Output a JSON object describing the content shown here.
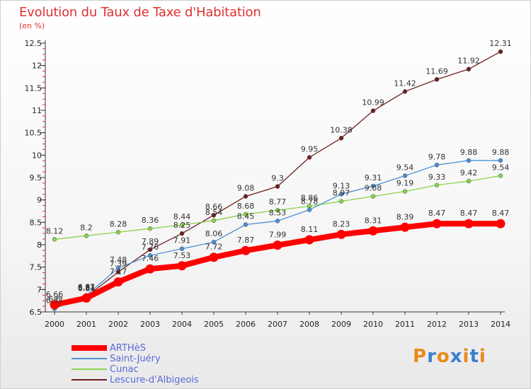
{
  "title": "Evolution du Taux de Taxe d'Habitation",
  "subtitle": "(en %)",
  "logo": {
    "text": "Proxiti",
    "icon": "proxiti-logo"
  },
  "chart_data": {
    "type": "line",
    "x": [
      "2000",
      "2001",
      "2002",
      "2003",
      "2004",
      "2005",
      "2006",
      "2007",
      "2008",
      "2009",
      "2010",
      "2011",
      "2012",
      "2013",
      "2014"
    ],
    "ylim": [
      6.5,
      12.5
    ],
    "yticks": [
      6.5,
      7,
      7.5,
      8,
      8.5,
      9,
      9.5,
      10,
      10.5,
      11,
      11.5,
      12,
      12.5
    ],
    "ytick_labels": [
      "6.5",
      "7",
      "7.5",
      "8",
      "8.5",
      "9",
      "9.5",
      "10",
      "10.5",
      "11",
      "11.5",
      "12",
      "12.5"
    ],
    "grid": false,
    "legend": "bottom-left",
    "series": [
      {
        "name": "ARTHèS",
        "color": "#ff0000",
        "values": [
          6.66,
          6.81,
          7.17,
          7.46,
          7.53,
          7.72,
          7.87,
          7.99,
          8.11,
          8.23,
          8.31,
          8.39,
          8.47,
          8.47,
          8.47
        ],
        "labels": [
          "6.66",
          "6.81",
          "7.17",
          "7.46",
          "7.53",
          "7.72",
          "7.87",
          "7.99",
          "8.11",
          "8.23",
          "8.31",
          "8.39",
          "8.47",
          "8.47",
          "8.47"
        ]
      },
      {
        "name": "Saint-Juéry",
        "color": "#4a8fd4",
        "values": [
          6.57,
          6.87,
          7.48,
          7.76,
          7.91,
          8.06,
          8.45,
          8.53,
          8.78,
          9.13,
          9.31,
          9.54,
          9.78,
          9.88,
          9.88
        ],
        "labels": [
          "6.57",
          "6.87",
          "7.48",
          "7.76",
          "7.91",
          "8.06",
          "8.45",
          "8.53",
          "8.78",
          "9.13",
          "9.31",
          "9.54",
          "9.78",
          "9.88",
          "9.88"
        ]
      },
      {
        "name": "Cunac",
        "color": "#88d34a",
        "values": [
          8.12,
          8.2,
          8.28,
          8.36,
          8.44,
          8.54,
          8.68,
          8.77,
          8.86,
          8.97,
          9.08,
          9.19,
          9.33,
          9.42,
          9.54
        ],
        "labels": [
          "8.12",
          "8.2",
          "8.28",
          "8.36",
          "8.44",
          "8.54",
          "8.68",
          "8.77",
          "8.86",
          "8.97",
          "9.08",
          "9.19",
          "9.33",
          "9.42",
          "9.54"
        ]
      },
      {
        "name": "Lescure-d'Albigeois",
        "color": "#6e1d1d",
        "values": [
          6.6,
          6.84,
          7.39,
          7.89,
          8.25,
          8.66,
          9.08,
          9.3,
          9.95,
          10.38,
          10.99,
          11.42,
          11.69,
          11.92,
          12.31
        ],
        "labels": [
          "6.6",
          "6.84",
          "7.39",
          "7.89",
          "8.25",
          "8.66",
          "9.08",
          "9.3",
          "9.95",
          "10.38",
          "10.99",
          "11.42",
          "11.69",
          "11.92",
          "12.31"
        ]
      }
    ]
  }
}
